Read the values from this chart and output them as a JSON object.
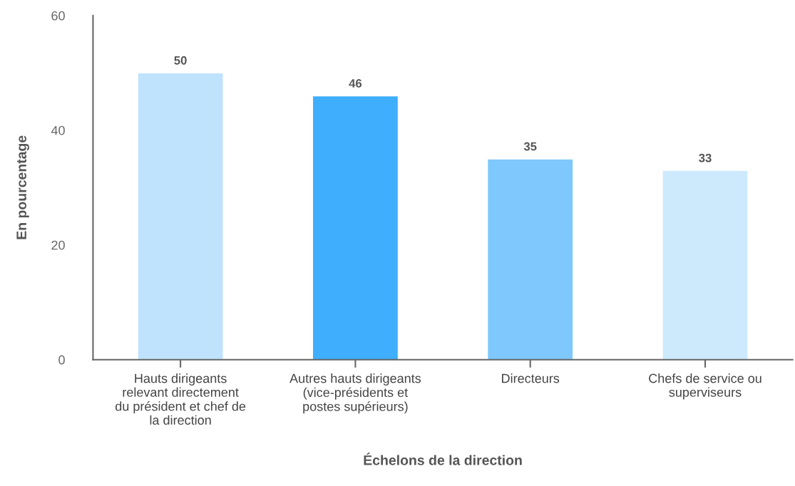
{
  "chart_data": {
    "type": "bar",
    "xlabel": "Échelons de la direction",
    "ylabel": "En pourcentage",
    "categories": [
      "Hauts dirigeants\nrelevant directement\ndu président et chef de\nla direction",
      "Autres hauts dirigeants\n(vice-présidents et\npostes supérieurs)",
      "Directeurs",
      "Chefs de service ou\nsuperviseurs"
    ],
    "values": [
      50,
      46,
      35,
      33
    ],
    "colors": [
      "#bfe3fd",
      "#3eaefd",
      "#7ec8fd",
      "#cdeafd"
    ],
    "ylim": [
      0,
      60
    ],
    "yticks": [
      0,
      20,
      40,
      60
    ],
    "data_labels": true,
    "grid": false,
    "legend": false
  }
}
